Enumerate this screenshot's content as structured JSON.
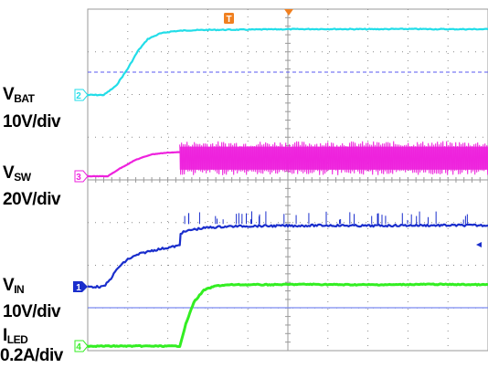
{
  "chart_data": {
    "type": "line",
    "title": "",
    "xlabel": "",
    "ylabel": "",
    "grid": true,
    "trigger_marker": "T",
    "channels": [
      {
        "id": "2",
        "name": "V",
        "name_sub": "BAT",
        "scale": "10V/div",
        "color": "#22dde8",
        "marker_color": "#22dde8",
        "x": [
          0,
          0.4,
          0.7,
          1.0,
          1.25,
          1.5,
          1.8,
          2.1,
          2.5,
          3.0,
          4.0,
          5.0,
          6.0,
          7.0,
          8.0,
          9.0,
          10.0
        ],
        "y": [
          0,
          0,
          0.4,
          1.2,
          2.0,
          2.55,
          2.8,
          2.9,
          2.95,
          2.97,
          2.98,
          3.0,
          3.01,
          3.0,
          3.01,
          3.0,
          3.0
        ]
      },
      {
        "id": "3",
        "name": "V",
        "name_sub": "SW",
        "scale": "20V/div",
        "color": "#ee22dd",
        "marker_color": "#ee22dd",
        "x": [
          0,
          0.5,
          0.8,
          1.2,
          1.6,
          2.0,
          2.3
        ],
        "y": [
          0,
          0,
          0.35,
          0.75,
          1.0,
          1.08,
          1.1
        ],
        "switching": {
          "x_start": 2.3,
          "x_end": 10.0,
          "low": 0.3,
          "high": 1.35
        }
      },
      {
        "id": "1",
        "name": "V",
        "name_sub": "IN",
        "scale": "10V/div",
        "color": "#1a2ecc",
        "marker_color": "#1a2ecc",
        "x": [
          0,
          0.4,
          0.55,
          0.75,
          1.0,
          1.3,
          1.6,
          1.9,
          2.2,
          2.3,
          2.32,
          2.6,
          3.0,
          3.5,
          4.0,
          5.0,
          6.0,
          7.0,
          8.0,
          9.0,
          10.0
        ],
        "y": [
          0,
          0,
          0.3,
          0.85,
          1.25,
          1.5,
          1.65,
          1.75,
          1.85,
          1.88,
          2.45,
          2.6,
          2.7,
          2.75,
          2.77,
          2.78,
          2.8,
          2.78,
          2.8,
          2.8,
          2.8
        ]
      },
      {
        "id": "4",
        "name": "I",
        "name_sub": "LED",
        "scale": "0.2A/div",
        "color": "#33ee22",
        "marker_color": "#33ee22",
        "x": [
          0,
          1.0,
          2.0,
          2.3,
          2.45,
          2.65,
          2.9,
          3.2,
          3.6,
          4.5,
          5.5,
          6.5,
          7.5,
          8.5,
          10.0
        ],
        "y": [
          0,
          0,
          0,
          0,
          1.0,
          2.0,
          2.55,
          2.75,
          2.8,
          2.8,
          2.82,
          2.8,
          2.8,
          2.82,
          2.8
        ]
      }
    ]
  }
}
